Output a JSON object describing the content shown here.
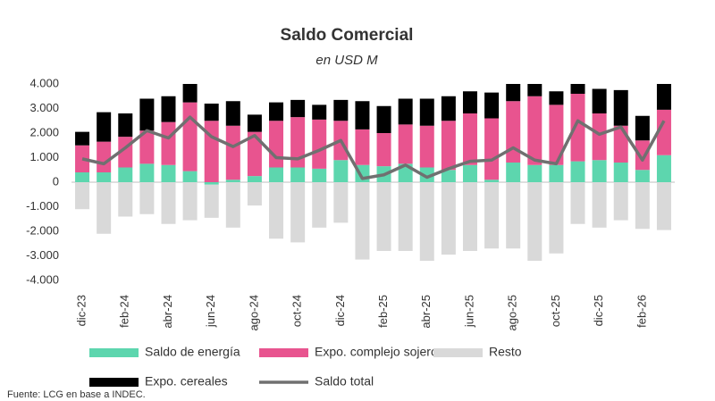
{
  "chart_data": {
    "type": "bar",
    "stacked": true,
    "title": "Saldo Comercial",
    "subtitle": "en USD M",
    "categories": [
      "dic-23",
      null,
      "feb-24",
      null,
      "abr-24",
      null,
      "jun-24",
      null,
      "ago-24",
      null,
      "oct-24",
      null,
      "dic-24",
      null,
      "feb-25",
      null,
      "abr-25",
      null,
      "jun-25",
      null,
      "ago-25",
      null,
      "oct-25",
      null,
      "dic-25",
      null,
      "feb-26",
      null
    ],
    "series": [
      {
        "name": "Saldo de energía",
        "color": "#5dd6ae",
        "values": [
          400,
          400,
          600,
          750,
          700,
          450,
          -100,
          100,
          250,
          600,
          600,
          550,
          900,
          700,
          650,
          750,
          600,
          500,
          700,
          100,
          800,
          700,
          700,
          850,
          900,
          800,
          500,
          1100
        ]
      },
      {
        "name": "Expo. complejo sojero",
        "color": "#e8548f",
        "values": [
          1100,
          1250,
          1250,
          1350,
          1750,
          2800,
          2500,
          2200,
          1800,
          1900,
          2050,
          2000,
          1600,
          1450,
          1350,
          1600,
          1700,
          2000,
          2100,
          2500,
          2500,
          2800,
          2450,
          2750,
          1900,
          1500,
          1200,
          1850
        ]
      },
      {
        "name": "Resto",
        "color": "#d9d9d9",
        "values": [
          -1100,
          -2100,
          -1400,
          -1300,
          -1700,
          -1550,
          -1350,
          -1850,
          -950,
          -2300,
          -2450,
          -1850,
          -1650,
          -3150,
          -2800,
          -2800,
          -3200,
          -2950,
          -2800,
          -2700,
          -2700,
          -3200,
          -2900,
          -1700,
          -1850,
          -1550,
          -1900,
          -1950
        ]
      },
      {
        "name": "Expo. cereales",
        "color": "#000000",
        "values": [
          550,
          1200,
          950,
          1300,
          1050,
          750,
          700,
          1000,
          700,
          750,
          700,
          600,
          850,
          1150,
          1100,
          1050,
          1100,
          1000,
          900,
          1050,
          700,
          500,
          550,
          400,
          1000,
          1450,
          1000,
          1050
        ]
      },
      {
        "name": "Saldo total",
        "type": "line",
        "color": "#707070",
        "values": [
          950,
          750,
          1400,
          2100,
          1800,
          2650,
          1850,
          1450,
          1900,
          1000,
          950,
          1300,
          1700,
          150,
          300,
          700,
          200,
          550,
          850,
          900,
          1400,
          900,
          750,
          2500,
          1950,
          2250,
          900,
          2500
        ]
      }
    ],
    "ylim": [
      -4000,
      4000
    ],
    "yticks": [
      {
        "value": 4000,
        "label": "4.000"
      },
      {
        "value": 3000,
        "label": "3.000"
      },
      {
        "value": 2000,
        "label": "2.000"
      },
      {
        "value": 1000,
        "label": "1.000"
      },
      0,
      {
        "value": -1000,
        "label": "-1.000"
      },
      {
        "value": -2000,
        "label": "-2.000"
      },
      {
        "value": -3000,
        "label": "-3.000"
      },
      {
        "value": -4000,
        "label": "-4.000"
      }
    ],
    "grid": false,
    "legend": "bottom",
    "source": "Fuente: LCG en base a INDEC."
  }
}
